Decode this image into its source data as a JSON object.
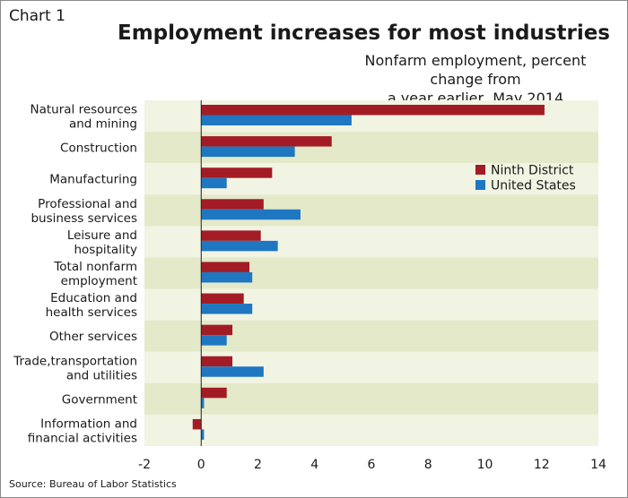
{
  "header": {
    "chart_label": "Chart 1",
    "title": "Employment increases for most industries",
    "subtitle_line1": "Nonfarm employment, percent change from",
    "subtitle_line2": "a year earlier, May 2014"
  },
  "footer": {
    "source": "Source: Bureau of Labor Statistics"
  },
  "colors": {
    "ninth_district": "#a31c25",
    "united_states": "#1f77c2",
    "band_light": "#f1f4e2",
    "band_dark": "#e4e9c9"
  },
  "chart_data": {
    "type": "bar",
    "orientation": "horizontal",
    "title": "Employment increases for most industries",
    "subtitle": "Nonfarm employment, percent change from a year earlier, May 2014",
    "categories": [
      [
        "Natural resources",
        "and mining"
      ],
      [
        "Construction"
      ],
      [
        "Manufacturing"
      ],
      [
        "Professional and",
        "business services"
      ],
      [
        "Leisure and",
        "hospitality"
      ],
      [
        "Total nonfarm",
        "employment"
      ],
      [
        "Education and",
        "health services"
      ],
      [
        "Other services"
      ],
      [
        "Trade,transportation",
        "and utilities"
      ],
      [
        "Government"
      ],
      [
        "Information and",
        "financial activities"
      ]
    ],
    "series": [
      {
        "name": "Ninth District",
        "values": [
          12.1,
          4.6,
          2.5,
          2.2,
          2.1,
          1.7,
          1.5,
          1.1,
          1.1,
          0.9,
          -0.3
        ]
      },
      {
        "name": "United States",
        "values": [
          5.3,
          3.3,
          0.9,
          3.5,
          2.7,
          1.8,
          1.8,
          0.9,
          2.2,
          0.1,
          0.1
        ]
      }
    ],
    "xlim": [
      -2,
      14
    ],
    "xticks": [
      "-2",
      "0",
      "2",
      "4",
      "6",
      "8",
      "10",
      "12",
      "14"
    ],
    "legend_position": "right"
  }
}
